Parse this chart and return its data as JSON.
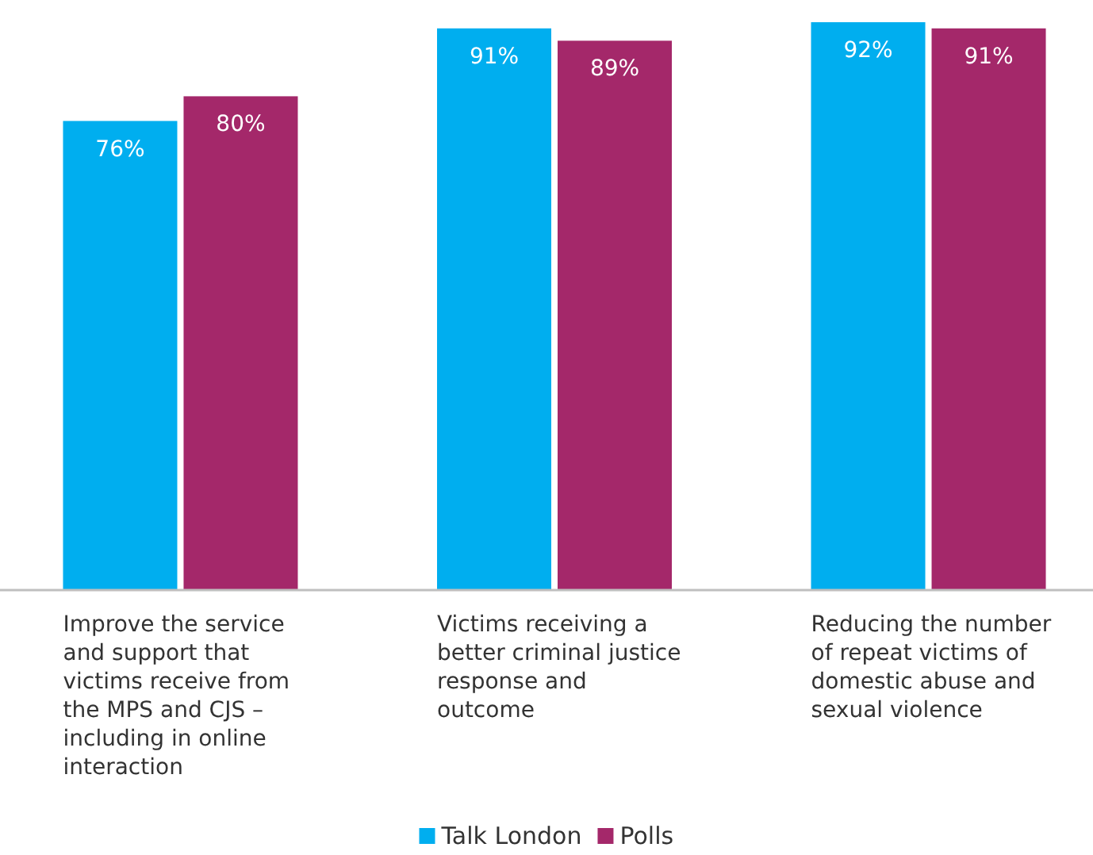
{
  "chart_data": {
    "type": "bar",
    "categories": [
      "Improve the service and support that victims receive from the MPS and CJS – including in online interaction",
      "Victims receiving a better criminal justice response and outcome",
      "Reducing the number of repeat victims of domestic abuse and sexual violence"
    ],
    "series": [
      {
        "name": "Talk London",
        "color": "#00aeef",
        "values": [
          76,
          91,
          92
        ],
        "value_labels": [
          "76%",
          "91%",
          "92%"
        ]
      },
      {
        "name": "Polls",
        "color": "#a4286a",
        "values": [
          80,
          89,
          91
        ],
        "value_labels": [
          "80%",
          "89%",
          "91%"
        ]
      }
    ],
    "legend": "bottom"
  }
}
